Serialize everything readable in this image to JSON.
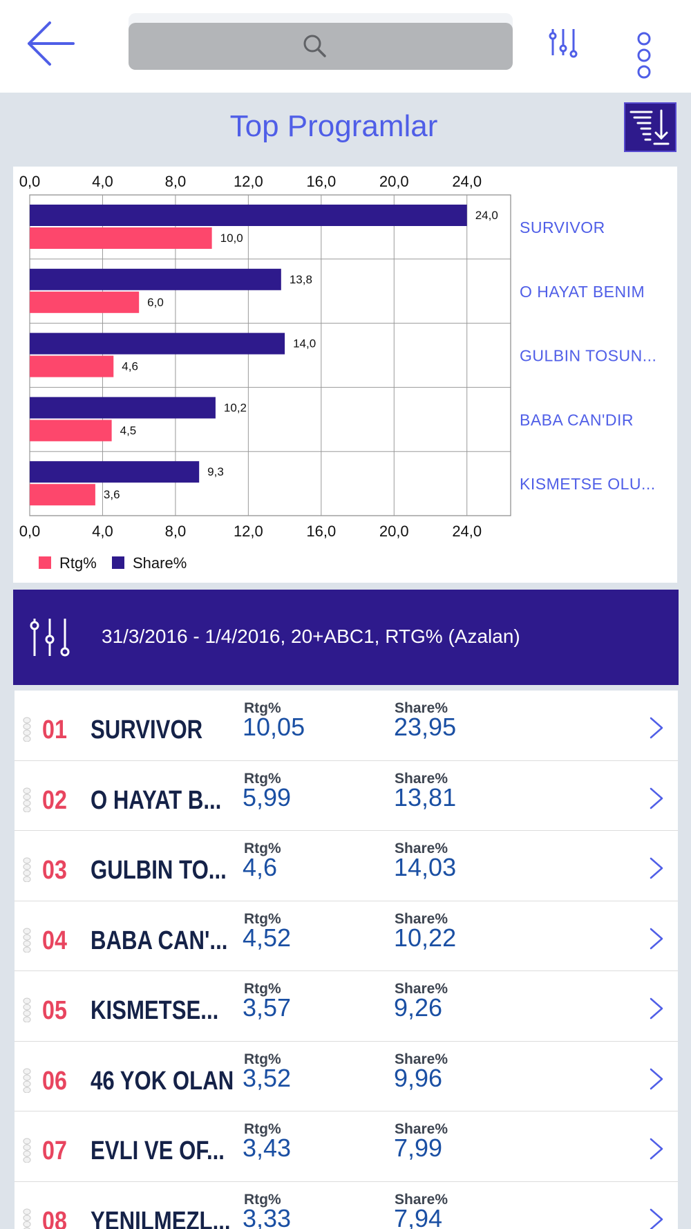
{
  "header": {
    "back_icon": "arrow-left-icon",
    "search_icon": "search-icon",
    "filter_icon": "sliders-icon",
    "more_icon": "more-vertical-icon"
  },
  "title": "Top Programlar",
  "sort_icon": "sort-descending-icon",
  "colors": {
    "accent": "#4f5ee7",
    "brand": "#2e1a8c",
    "rtg": "#fd476c",
    "share": "#2e1a8c",
    "rank": "#e8455f",
    "value": "#1a4fa3"
  },
  "chart_data": {
    "type": "bar",
    "orientation": "horizontal",
    "categories": [
      "SURVIVOR",
      "O HAYAT BENIM",
      "GULBIN TOSUN...",
      "BABA CAN'DIR",
      "KISMETSE OLU..."
    ],
    "series": [
      {
        "name": "Share%",
        "values": [
          24.0,
          13.8,
          14.0,
          10.2,
          9.3
        ],
        "labels": [
          "24,0",
          "13,8",
          "14,0",
          "10,2",
          "9,3"
        ],
        "color": "#2e1a8c"
      },
      {
        "name": "Rtg%",
        "values": [
          10.0,
          6.0,
          4.6,
          4.5,
          3.6
        ],
        "labels": [
          "10,0",
          "6,0",
          "4,6",
          "4,5",
          "3,6"
        ],
        "color": "#fd476c"
      }
    ],
    "xlim": [
      0,
      26.4
    ],
    "ticks": [
      0,
      4,
      8,
      12,
      16,
      20,
      24
    ],
    "tick_labels": [
      "0,0",
      "4,0",
      "8,0",
      "12,0",
      "16,0",
      "20,0",
      "24,0"
    ],
    "grid": true,
    "legend": [
      "Rtg%",
      "Share%"
    ],
    "legend_position": "bottom-left"
  },
  "filter_banner": {
    "icon": "sliders-icon",
    "text": "31/3/2016 - 1/4/2016, 20+ABC1, RTG% (Azalan)"
  },
  "list": {
    "rtg_label": "Rtg%",
    "share_label": "Share%",
    "rows": [
      {
        "rank": "01",
        "name": "SURVIVOR",
        "rtg": "10,05",
        "share": "23,95"
      },
      {
        "rank": "02",
        "name": "O HAYAT B...",
        "rtg": "5,99",
        "share": "13,81"
      },
      {
        "rank": "03",
        "name": "GULBIN TO...",
        "rtg": "4,6",
        "share": "14,03"
      },
      {
        "rank": "04",
        "name": "BABA CAN'...",
        "rtg": "4,52",
        "share": "10,22"
      },
      {
        "rank": "05",
        "name": "KISMETSE...",
        "rtg": "3,57",
        "share": "9,26"
      },
      {
        "rank": "06",
        "name": "46 YOK OLAN",
        "rtg": "3,52",
        "share": "9,96"
      },
      {
        "rank": "07",
        "name": "EVLI VE OF...",
        "rtg": "3,43",
        "share": "7,99"
      },
      {
        "rank": "08",
        "name": "YENILMEZL...",
        "rtg": "3,33",
        "share": "7,94"
      }
    ]
  }
}
